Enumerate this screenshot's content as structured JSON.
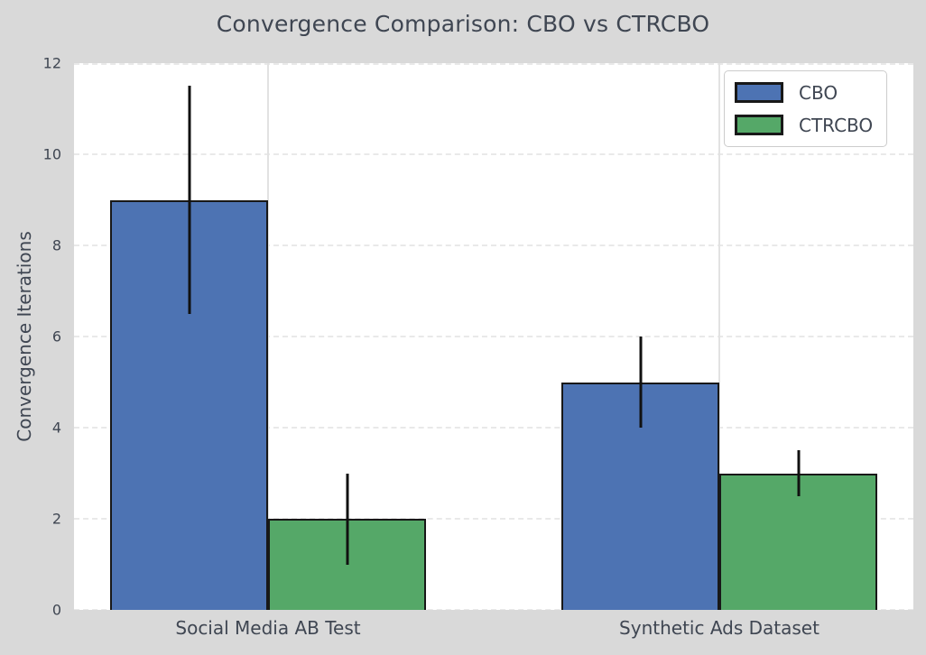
{
  "chart_data": {
    "type": "bar",
    "title": "Convergence Comparison: CBO vs CTRCBO",
    "xlabel": "",
    "ylabel": "Convergence Iterations",
    "categories": [
      "Social Media AB Test",
      "Synthetic Ads Dataset"
    ],
    "series": [
      {
        "name": "CBO",
        "color": "#4d73b3",
        "values": [
          9,
          5
        ],
        "errors": [
          2.5,
          1.0
        ]
      },
      {
        "name": "CTRCBO",
        "color": "#55a868",
        "values": [
          2,
          3
        ],
        "errors": [
          1.0,
          0.5
        ]
      }
    ],
    "ylim": [
      0,
      12
    ],
    "yticks": [
      "0",
      "2",
      "4",
      "6",
      "8",
      "10",
      "12"
    ],
    "ytick_values": [
      0,
      2,
      4,
      6,
      8,
      10,
      12
    ],
    "bar_width": 0.35,
    "grid": true,
    "grid_horizontal_style": "dashed",
    "grid_vertical_style": "solid",
    "legend_position": "upper right",
    "legend_entries": [
      "CBO",
      "CTRCBO"
    ],
    "bar_edge_color": "#181818",
    "error_bar_color": "#111111"
  },
  "colors": {
    "figure_background": "#d9d9d9",
    "plot_background": "#ffffff",
    "grid_color": "#e9e9e9",
    "text_color": "#3f4652",
    "cbo_blue": "#4d73b3",
    "ctrcbo_green": "#55a868"
  }
}
